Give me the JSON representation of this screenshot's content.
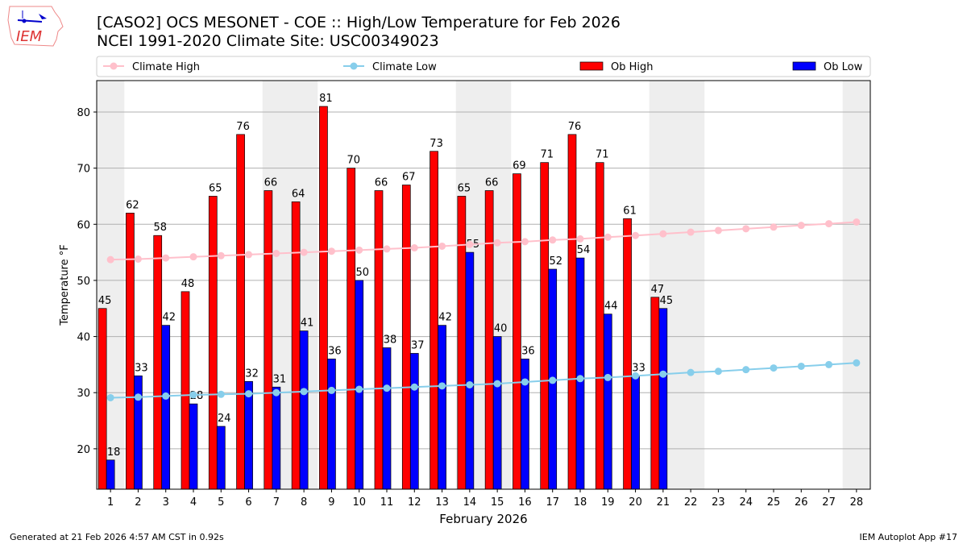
{
  "header": {
    "title_line1": "[CASO2] OCS MESONET - COE :: High/Low Temperature for Feb 2026",
    "title_line2": "NCEI 1991-2020 Climate Site: USC00349023",
    "logo_text": "IEM"
  },
  "footer": {
    "left": "Generated at 21 Feb 2026 4:57 AM CST in 0.92s",
    "right": "IEM Autoplot App #17"
  },
  "chart_data": {
    "type": "bar",
    "xlabel": "February 2026",
    "ylabel": "Temperature °F",
    "ylim": [
      12.8,
      85.6
    ],
    "xlim": [
      0.5,
      28.5
    ],
    "yticks": [
      20,
      30,
      40,
      50,
      60,
      70,
      80
    ],
    "grid": true,
    "legend_placement": "top",
    "weekend_shading": [
      [
        0.5,
        1.5
      ],
      [
        6.5,
        8.5
      ],
      [
        13.5,
        15.5
      ],
      [
        20.5,
        22.5
      ],
      [
        27.5,
        28.5
      ]
    ],
    "days": [
      1,
      2,
      3,
      4,
      5,
      6,
      7,
      8,
      9,
      10,
      11,
      12,
      13,
      14,
      15,
      16,
      17,
      18,
      19,
      20,
      21,
      22,
      23,
      24,
      25,
      26,
      27,
      28
    ],
    "series": [
      {
        "name": "Climate High",
        "type": "line",
        "color": "#ffc0cb",
        "values": [
          53.7,
          53.8,
          54.0,
          54.2,
          54.4,
          54.6,
          54.8,
          55.0,
          55.2,
          55.4,
          55.6,
          55.8,
          56.1,
          56.4,
          56.7,
          56.9,
          57.2,
          57.4,
          57.7,
          58.0,
          58.3,
          58.6,
          58.9,
          59.2,
          59.5,
          59.8,
          60.1,
          60.4
        ]
      },
      {
        "name": "Climate Low",
        "type": "line",
        "color": "#87ceeb",
        "values": [
          29.1,
          29.2,
          29.4,
          29.6,
          29.7,
          29.8,
          30.0,
          30.2,
          30.4,
          30.6,
          30.8,
          31.0,
          31.2,
          31.4,
          31.6,
          31.9,
          32.2,
          32.5,
          32.7,
          33.0,
          33.3,
          33.6,
          33.8,
          34.1,
          34.4,
          34.7,
          35.0,
          35.3
        ]
      },
      {
        "name": "Ob High",
        "type": "bar",
        "color": "#ff0000",
        "values": [
          45,
          62,
          58,
          48,
          65,
          76,
          66,
          64,
          81,
          70,
          66,
          67,
          73,
          65,
          66,
          69,
          71,
          76,
          71,
          61,
          47
        ]
      },
      {
        "name": "Ob Low",
        "type": "bar",
        "color": "#0000ff",
        "values": [
          18,
          33,
          42,
          28,
          24,
          32,
          31,
          41,
          36,
          50,
          38,
          37,
          42,
          55,
          40,
          36,
          52,
          54,
          44,
          33,
          45
        ]
      }
    ]
  }
}
